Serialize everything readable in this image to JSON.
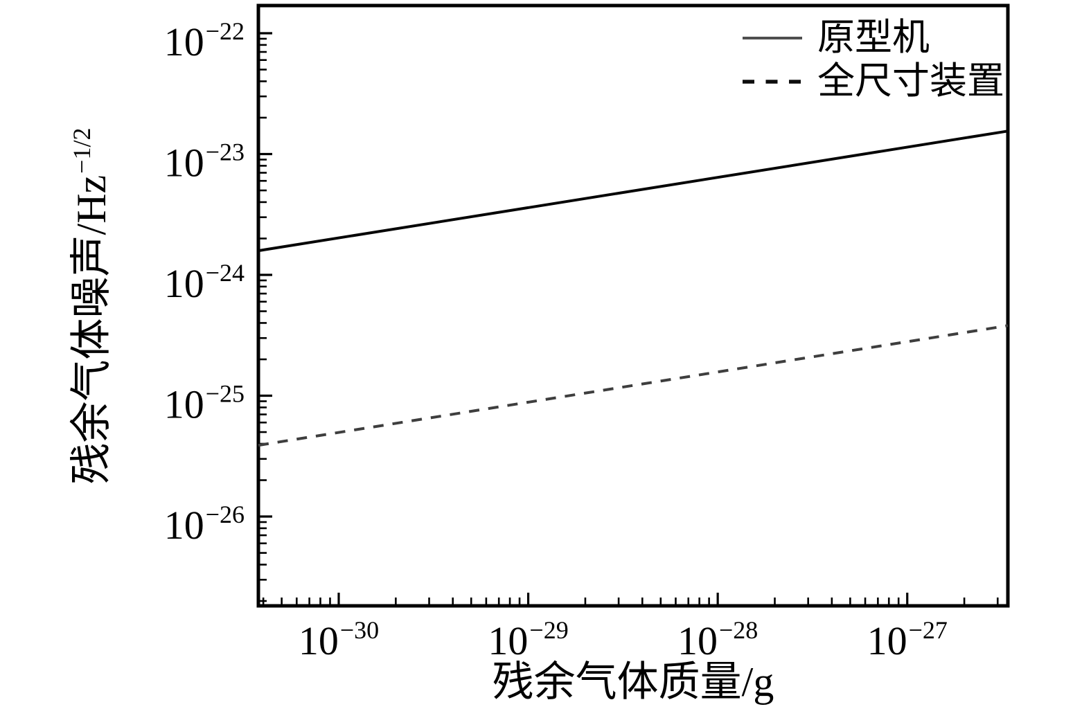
{
  "figure": {
    "background_color": "#ffffff",
    "axis_color": "#000000",
    "text_color": "#000000"
  },
  "legend": {
    "position": "top-right",
    "items": [
      {
        "label": "原型机",
        "line_style": "solid",
        "sample_color": "#4f4f4f"
      },
      {
        "label": "全尺寸装置",
        "line_style": "dashed",
        "sample_color": "#0d0d0d"
      }
    ]
  },
  "chart_data": {
    "type": "line",
    "title": "",
    "xlabel": "残余气体质量/g",
    "ylabel_base": "残余气体噪声/Hz",
    "ylabel_exponent": "−1/2",
    "x_scale": "log10",
    "y_scale": "log10",
    "grid": false,
    "legend_position": "top-right",
    "xlim_log10": [
      -30.424,
      -26.469
    ],
    "ylim_log10": [
      -26.739,
      -21.771
    ],
    "x_major_tick_exponents": [
      -30,
      -29,
      -28,
      -27
    ],
    "y_major_tick_exponents": [
      -22,
      -23,
      -24,
      -25,
      -26
    ],
    "minor_ticks": "log decades 2-9 on both axes",
    "series": [
      {
        "name": "原型机",
        "line_style": "solid",
        "color": "#050505",
        "points_log10": [
          [
            -30.424,
            -23.8
          ],
          [
            -26.469,
            -22.81
          ]
        ],
        "endpoint_values": [
          {
            "x": "3.8e-31 g",
            "y": "1.6e-24 Hz^-1/2"
          },
          {
            "x": "3.4e-27 g",
            "y": "1.55e-23 Hz^-1/2"
          }
        ],
        "slope_decades_per_decade": 0.25
      },
      {
        "name": "全尺寸装置",
        "line_style": "dashed",
        "color": "#3e3e3e",
        "points_log10": [
          [
            -30.424,
            -25.41
          ],
          [
            -26.469,
            -24.42
          ]
        ],
        "endpoint_values": [
          {
            "x": "3.8e-31 g",
            "y": "3.9e-26 Hz^-1/2"
          },
          {
            "x": "3.4e-27 g",
            "y": "3.8e-25 Hz^-1/2"
          }
        ],
        "slope_decades_per_decade": 0.25
      }
    ]
  }
}
